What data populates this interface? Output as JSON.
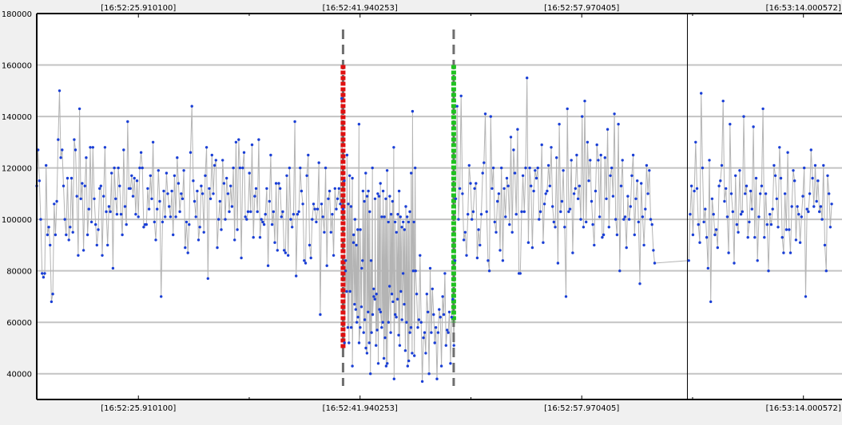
{
  "chart_data": {
    "type": "scatter",
    "title": "",
    "xlabel": "",
    "ylabel": "",
    "ylim": [
      30000,
      180000
    ],
    "yticks": [
      40000,
      60000,
      80000,
      100000,
      120000,
      140000,
      160000,
      180000
    ],
    "ytick_labels": [
      "40000",
      "60000",
      "80000",
      "100000",
      "120000",
      "140000",
      "160000",
      "180000"
    ],
    "x_unit": "seconds",
    "xlim": [
      -7.35,
      50.88
    ],
    "xticks": [
      0,
      16.030153,
      32.060305,
      48.090472
    ],
    "xtick_labels": [
      "[16:52:25.910100]",
      "[16:52:41.940253]",
      "[16:52:57.970405]",
      "[16:53:14.000572]"
    ],
    "grid": true,
    "point_color": "#1a3fd6",
    "line_color": "#b4b4b4",
    "markers": [
      {
        "name": "start-marker",
        "x": 14.8,
        "y_from": 50000,
        "y_to": 160000,
        "color": "#e01010"
      },
      {
        "name": "end-marker",
        "x": 22.8,
        "y_from": 60000,
        "y_to": 160000,
        "color": "#1fc21f"
      }
    ],
    "cursor_x": 39.7,
    "series": [
      {
        "x_start": -7.35,
        "x_step": 0.0967,
        "values": [
          113000,
          127000,
          115000,
          100000,
          79000,
          77500,
          79000,
          121000,
          94000,
          97000,
          90000,
          68000,
          71000,
          106000,
          94000,
          107000,
          131000,
          150000,
          124000,
          127000,
          113000,
          100000,
          94000,
          116000,
          92000,
          97000,
          116000,
          95000,
          131000,
          127000,
          109000,
          86000,
          143000,
          108000,
          114000,
          88000,
          113000,
          124000,
          94000,
          104000,
          128000,
          99000,
          128000,
          108000,
          98000,
          90000,
          96000,
          112000,
          113000,
          86000,
          109000,
          128000,
          103000,
          90000,
          105000,
          103000,
          118000,
          81000,
          120000,
          108000,
          102000,
          120000,
          113000,
          102000,
          94000,
          127000,
          105000,
          98000,
          138000,
          112000,
          112000,
          117000,
          109000,
          116000,
          102000,
          115000,
          101000,
          120000,
          126000,
          120000,
          97000,
          98000,
          98000,
          112000,
          104000,
          117000,
          108000,
          130000,
          99000,
          92000,
          104000,
          119000,
          107000,
          70000,
          99000,
          111000,
          101000,
          118000,
          110000,
          105000,
          101000,
          111000,
          94000,
          117000,
          101000,
          124000,
          114000,
          103000,
          110000,
          108000,
          119000,
          89000,
          99000,
          87000,
          98000,
          126000,
          144000,
          115000,
          107000,
          101000,
          111000,
          92000,
          97000,
          113000,
          110000,
          95000,
          117000,
          128000,
          77000,
          112000,
          108000,
          125000,
          110000,
          121000,
          123000,
          89000,
          100000,
          107000,
          96000,
          123000,
          114000,
          100000,
          116000,
          110000,
          103000,
          113000,
          105000,
          120000,
          92000,
          130000,
          96000,
          131000,
          120000,
          85000,
          120000,
          126000,
          101000,
          100000,
          103000,
          118000,
          103000,
          129000,
          93000,
          109000,
          112000,
          103000,
          131000,
          93000,
          100000,
          99000,
          98000,
          102000,
          112000,
          82000,
          107000,
          125000,
          98000,
          103000,
          91000,
          114000,
          88000,
          114000,
          112000,
          101000,
          103000,
          88000,
          87000,
          117000,
          86000,
          120000,
          100000,
          97000,
          102000,
          138000,
          78000,
          102000,
          103000,
          120000,
          111000,
          106000,
          84000,
          83000,
          117000,
          125000,
          90000,
          85000,
          100000,
          106000,
          104000,
          99000,
          104000,
          122000,
          63000,
          106000,
          101000,
          95000,
          120000,
          82000,
          108000,
          111000,
          95000,
          102000,
          86000,
          112000,
          104000,
          108000,
          112000,
          106000,
          147000,
          104000,
          115000,
          84000,
          125000,
          106000,
          117000,
          105000,
          116000,
          94000,
          100000,
          90000,
          96000,
          137000,
          96000,
          81000,
          111000,
          107000,
          118000,
          109000,
          111000,
          103000,
          84000,
          120000,
          73000,
          108000,
          71000,
          110000,
          109000,
          114000,
          101000,
          111000,
          101000,
          108000,
          119000,
          99000,
          109000,
          102000,
          107000,
          128000,
          99000,
          95000,
          102000,
          111000,
          101000,
          97000,
          99000,
          96000,
          105000,
          101000,
          99000,
          103000,
          118000,
          142000,
          99000,
          120000
        ]
      },
      {
        "x_start": 14.9,
        "x_step": 0.0816,
        "values": [
          52000,
          80000,
          72000,
          58000,
          52000,
          72000,
          58000,
          43000,
          91000,
          67000,
          65000,
          60000,
          62000,
          52000,
          58000,
          66000,
          84000,
          56000,
          61000,
          50000,
          48000,
          64000,
          52000,
          40000,
          56000,
          63000,
          70000,
          69000,
          51000,
          57000,
          44000,
          65000,
          64000,
          58000,
          60000,
          46000,
          54000,
          43000,
          44000,
          60000,
          74000,
          56000,
          71000,
          68000,
          38000,
          63000,
          62000,
          69000,
          55000,
          51000,
          72000,
          61000,
          79000,
          67000,
          49000,
          60000,
          43000,
          45000,
          56000,
          58000,
          48000,
          80000,
          47000,
          80000,
          71000,
          58000,
          61000,
          86000,
          60000,
          37000,
          54000,
          56000,
          48000,
          71000,
          64000,
          40000,
          81000,
          56000,
          73000,
          63000,
          52000,
          58000,
          38000,
          56000,
          65000,
          62000,
          43000,
          70000,
          63000,
          79000,
          51000,
          57000,
          56000,
          64000,
          44000,
          62000,
          69000,
          51000,
          84000
        ]
      },
      {
        "x_start": 22.95,
        "x_step": 0.0972,
        "values": [
          108000,
          144000,
          100000,
          112000,
          148000,
          110000,
          92000,
          95000,
          86000,
          102000,
          121000,
          114000,
          100000,
          103000,
          112000,
          114000,
          85000,
          96000,
          90000,
          102000,
          118000,
          122000,
          141000,
          103000,
          84000,
          80000,
          140000,
          112000,
          120000,
          99000,
          95000,
          107000,
          110000,
          88000,
          120000,
          84000,
          112000,
          101000,
          116000,
          113000,
          98000,
          132000,
          95000,
          127000,
          118000,
          102000,
          135000,
          79000,
          79000,
          103000,
          117000,
          103000,
          120000,
          155000,
          91000,
          120000,
          113000,
          89000,
          111000,
          119000,
          116000,
          120000,
          100000,
          103000,
          129000,
          91000,
          106000,
          110000,
          111000,
          121000,
          113000,
          128000,
          105000,
          99000,
          97000,
          124000,
          83000,
          137000,
          103000,
          107000,
          119000,
          97000,
          70000,
          143000,
          103000,
          104000,
          123000,
          87000,
          110000,
          112000,
          125000,
          108000,
          113000,
          100000,
          140000,
          97000,
          146000,
          99000,
          130000,
          115000,
          123000,
          107000,
          98000,
          90000,
          111000,
          129000,
          123000,
          101000,
          125000,
          93000,
          94000,
          124000,
          108000,
          135000,
          97000,
          117000,
          120000,
          109000,
          141000,
          100000,
          94000,
          137000,
          80000,
          113000,
          123000,
          100000,
          101000,
          89000,
          109000,
          100000,
          105000,
          117000,
          125000,
          94000,
          108000,
          115000,
          99000,
          75000,
          114000,
          101000,
          90000,
          104000,
          121000,
          110000,
          119000,
          100000,
          98000,
          88000,
          83000
        ]
      },
      {
        "x_start": 39.8,
        "x_step": 0.0994,
        "values": [
          84000,
          102000,
          113000,
          94000,
          111000,
          130000,
          112000,
          98000,
          91000,
          149000,
          120000,
          99000,
          104000,
          93000,
          81000,
          123000,
          68000,
          108000,
          102000,
          94000,
          96000,
          89000,
          113000,
          115000,
          121000,
          146000,
          107000,
          112000,
          101000,
          87000,
          137000,
          110000,
          103000,
          83000,
          117000,
          98000,
          95000,
          119000,
          102000,
          103000,
          140000,
          110000,
          113000,
          93000,
          99000,
          111000,
          104000,
          136000,
          93000,
          116000,
          84000,
          101000,
          110000,
          113000,
          143000,
          93000,
          110000,
          98000,
          80000,
          102000,
          98000,
          104000,
          121000,
          117000,
          108000,
          97000,
          128000,
          116000,
          93000,
          87000,
          110000,
          96000,
          126000,
          96000,
          87000,
          105000,
          119000,
          115000,
          92000,
          105000,
          102000,
          91000,
          101000,
          109000,
          120000,
          70000,
          104000,
          103000,
          110000,
          127000,
          116000,
          105000,
          121000,
          107000,
          115000,
          103000,
          105000,
          100000,
          121000,
          90000,
          80000,
          117000,
          110000,
          97000,
          106000
        ]
      }
    ]
  }
}
